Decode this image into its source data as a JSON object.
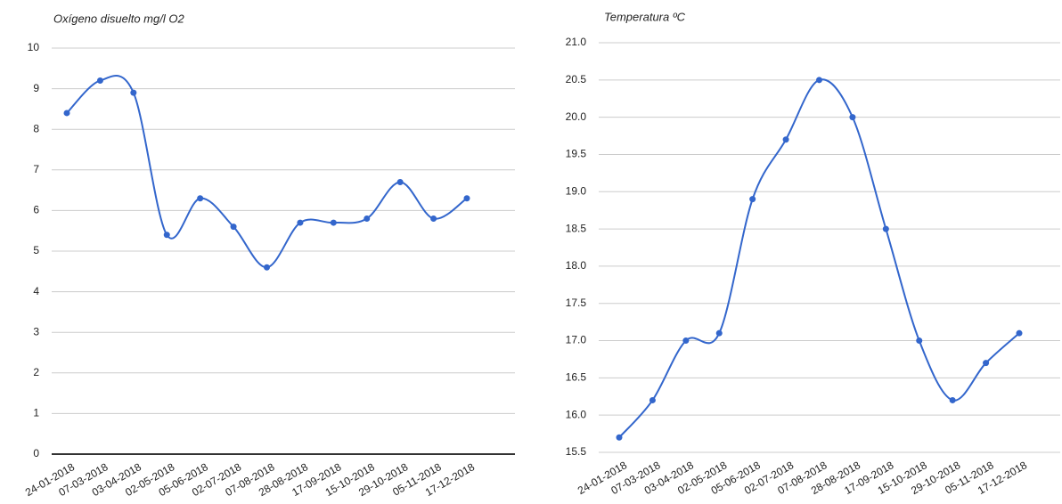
{
  "chart_data": [
    {
      "type": "line",
      "title": "Oxígeno disuelto mg/l O2",
      "categories": [
        "24-01-2018",
        "07-03-2018",
        "03-04-2018",
        "02-05-2018",
        "05-06-2018",
        "02-07-2018",
        "07-08-2018",
        "28-08-2018",
        "17-09-2018",
        "15-10-2018",
        "29-10-2018",
        "05-11-2018",
        "17-12-2018"
      ],
      "values": [
        8.4,
        9.2,
        8.9,
        5.4,
        6.3,
        5.6,
        4.6,
        5.7,
        5.7,
        5.8,
        6.7,
        5.8,
        6.3
      ],
      "color": "#3366cc",
      "ylim": [
        0,
        10
      ],
      "yticks": [
        0,
        1,
        2,
        3,
        4,
        5,
        6,
        7,
        8,
        9,
        10
      ],
      "grid": true
    },
    {
      "type": "line",
      "title": "Temperatura ºC",
      "categories": [
        "24-01-2018",
        "07-03-2018",
        "03-04-2018",
        "02-05-2018",
        "05-06-2018",
        "02-07-2018",
        "07-08-2018",
        "28-08-2018",
        "17-09-2018",
        "15-10-2018",
        "29-10-2018",
        "05-11-2018",
        "17-12-2018"
      ],
      "values": [
        15.7,
        16.2,
        17.0,
        17.1,
        18.9,
        19.7,
        20.5,
        20.0,
        18.5,
        17.0,
        16.2,
        16.7,
        17.1
      ],
      "color": "#3366cc",
      "ylim": [
        15.5,
        21.0
      ],
      "yticks": [
        {
          "value": 15.5,
          "label": "15.5"
        },
        {
          "value": 16,
          "label": "16.0"
        },
        {
          "value": 16.5,
          "label": "16.5"
        },
        {
          "value": 17,
          "label": "17.0"
        },
        {
          "value": 17.5,
          "label": "17.5"
        },
        {
          "value": 18,
          "label": "18.0"
        },
        {
          "value": 18.5,
          "label": "18.5"
        },
        {
          "value": 19,
          "label": "19.0"
        },
        {
          "value": 19.5,
          "label": "19.5"
        },
        {
          "value": 20,
          "label": "20.0"
        },
        {
          "value": 20.5,
          "label": "20.5"
        },
        {
          "value": 21,
          "label": "21.0"
        }
      ],
      "grid": true
    }
  ]
}
